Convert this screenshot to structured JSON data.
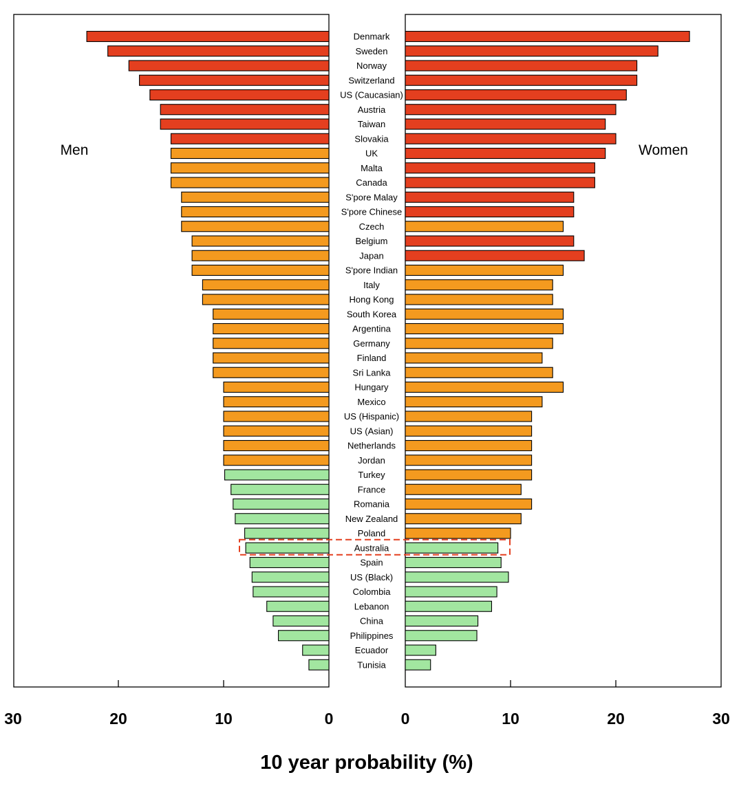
{
  "chart_data": {
    "type": "bar",
    "orientation": "horizontal",
    "layout": "back-to-back",
    "xlabel": "10 year probability (%)",
    "xlim": [
      0,
      30
    ],
    "ticks": [
      "30",
      "20",
      "10",
      "0",
      "0",
      "10",
      "20",
      "30"
    ],
    "panels": {
      "left": "Men",
      "right": "Women"
    },
    "colors": {
      "high": "#e43f1f",
      "medium": "#f49a1f",
      "low": "#a2e6a0",
      "highlight": "#e43f1f"
    },
    "highlighted_category": "Australia",
    "categories": [
      "Denmark",
      "Sweden",
      "Norway",
      "Switzerland",
      "US (Caucasian)",
      "Austria",
      "Taiwan",
      "Slovakia",
      "UK",
      "Malta",
      "Canada",
      "S'pore Malay",
      "S'pore Chinese",
      "Czech",
      "Belgium",
      "Japan",
      "S'pore Indian",
      "Italy",
      "Hong Kong",
      "South Korea",
      "Argentina",
      "Germany",
      "Finland",
      "Sri Lanka",
      "Hungary",
      "Mexico",
      "US (Hispanic)",
      "US (Asian)",
      "Netherlands",
      "Jordan",
      "Turkey",
      "France",
      "Romania",
      "New Zealand",
      "Poland",
      "Australia",
      "Spain",
      "US (Black)",
      "Colombia",
      "Lebanon",
      "China",
      "Philippines",
      "Ecuador",
      "Tunisia"
    ],
    "series": [
      {
        "name": "Men",
        "values": [
          23,
          21,
          19,
          18,
          17,
          16,
          16,
          15,
          15,
          15,
          15,
          14,
          14,
          14,
          13,
          13,
          13,
          12,
          12,
          11,
          11,
          11,
          11,
          11,
          10,
          10,
          10,
          10,
          10,
          10,
          9.9,
          9.3,
          9.1,
          8.9,
          8.0,
          7.9,
          7.5,
          7.3,
          7.2,
          5.9,
          5.3,
          4.8,
          2.5,
          1.9
        ],
        "risk": [
          "high",
          "high",
          "high",
          "high",
          "high",
          "high",
          "high",
          "high",
          "medium",
          "medium",
          "medium",
          "medium",
          "medium",
          "medium",
          "medium",
          "medium",
          "medium",
          "medium",
          "medium",
          "medium",
          "medium",
          "medium",
          "medium",
          "medium",
          "medium",
          "medium",
          "medium",
          "medium",
          "medium",
          "medium",
          "low",
          "low",
          "low",
          "low",
          "low",
          "low",
          "low",
          "low",
          "low",
          "low",
          "low",
          "low",
          "low",
          "low"
        ]
      },
      {
        "name": "Women",
        "values": [
          27,
          24,
          22,
          22,
          21,
          20,
          19,
          20,
          19,
          18,
          18,
          16,
          16,
          15,
          16,
          17,
          15,
          14,
          14,
          15,
          15,
          14,
          13,
          14,
          15,
          13,
          12,
          12,
          12,
          12,
          12,
          11,
          12,
          11,
          10,
          8.8,
          9.1,
          9.8,
          8.7,
          8.2,
          6.9,
          6.8,
          2.9,
          2.4
        ],
        "risk": [
          "high",
          "high",
          "high",
          "high",
          "high",
          "high",
          "high",
          "high",
          "high",
          "high",
          "high",
          "high",
          "high",
          "medium",
          "high",
          "high",
          "medium",
          "medium",
          "medium",
          "medium",
          "medium",
          "medium",
          "medium",
          "medium",
          "medium",
          "medium",
          "medium",
          "medium",
          "medium",
          "medium",
          "medium",
          "medium",
          "medium",
          "medium",
          "medium",
          "low",
          "low",
          "low",
          "low",
          "low",
          "low",
          "low",
          "low",
          "low"
        ]
      }
    ]
  }
}
